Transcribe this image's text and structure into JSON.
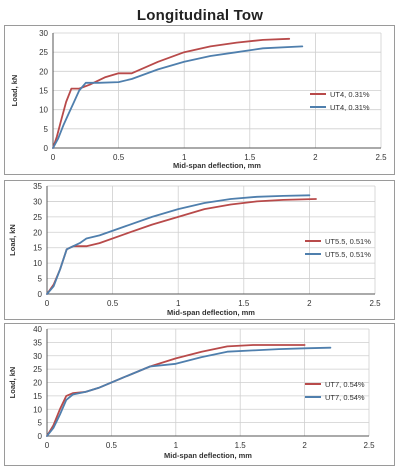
{
  "page": {
    "title": "Longitudinal Tow"
  },
  "chart_data": [
    {
      "type": "line",
      "title": "",
      "xlabel": "Mid-span deflection, mm",
      "ylabel": "Load, kN",
      "xlim": [
        0,
        2.5
      ],
      "ylim": [
        0,
        30
      ],
      "xticks": [
        "0",
        "0.5",
        "1",
        "1.5",
        "2",
        "2.5"
      ],
      "yticks": [
        "0",
        "5",
        "10",
        "15",
        "20",
        "25",
        "30"
      ],
      "grid": true,
      "legend_position": "right",
      "series": [
        {
          "name": "UT4, 0.31%",
          "color": "#b84a4a",
          "x": [
            0,
            0.03,
            0.06,
            0.1,
            0.14,
            0.2,
            0.28,
            0.4,
            0.5,
            0.6,
            0.8,
            1.0,
            1.2,
            1.4,
            1.6,
            1.8
          ],
          "y": [
            0,
            3,
            7,
            12,
            15.5,
            15.5,
            16.5,
            18.5,
            19.5,
            19.5,
            22.5,
            25,
            26.5,
            27.5,
            28.2,
            28.5
          ]
        },
        {
          "name": "UT4, 0.31%",
          "color": "#4f7fad",
          "x": [
            0,
            0.04,
            0.08,
            0.12,
            0.16,
            0.2,
            0.25,
            0.35,
            0.5,
            0.6,
            0.8,
            1.0,
            1.2,
            1.4,
            1.6,
            1.9
          ],
          "y": [
            0,
            2.5,
            6,
            9,
            12,
            15,
            17,
            17,
            17.2,
            18,
            20.5,
            22.5,
            24,
            25,
            26,
            26.5
          ]
        }
      ]
    },
    {
      "type": "line",
      "title": "",
      "xlabel": "Mid-span deflection, mm",
      "ylabel": "Load, kN",
      "xlim": [
        0,
        2.5
      ],
      "ylim": [
        0,
        35
      ],
      "xticks": [
        "0",
        "0.5",
        "1",
        "1.5",
        "2",
        "2.5"
      ],
      "yticks": [
        "0",
        "5",
        "10",
        "15",
        "20",
        "25",
        "30",
        "35"
      ],
      "grid": true,
      "legend_position": "right",
      "series": [
        {
          "name": "UT5.5, 0.51%",
          "color": "#b84a4a",
          "x": [
            0,
            0.05,
            0.1,
            0.15,
            0.2,
            0.3,
            0.4,
            0.6,
            0.8,
            1.0,
            1.2,
            1.4,
            1.6,
            1.8,
            2.05
          ],
          "y": [
            0,
            3,
            8,
            14.5,
            15.5,
            15.5,
            16.5,
            19.5,
            22.5,
            25,
            27.5,
            29,
            30,
            30.5,
            30.8
          ]
        },
        {
          "name": "UT5.5, 0.51%",
          "color": "#4f7fad",
          "x": [
            0,
            0.05,
            0.1,
            0.15,
            0.2,
            0.25,
            0.3,
            0.4,
            0.6,
            0.8,
            1.0,
            1.2,
            1.4,
            1.6,
            1.8,
            2.0
          ],
          "y": [
            0,
            2.5,
            8,
            14.5,
            15.5,
            16.5,
            18,
            19,
            22,
            25,
            27.5,
            29.5,
            30.8,
            31.5,
            31.8,
            32
          ]
        }
      ]
    },
    {
      "type": "line",
      "title": "",
      "xlabel": "Mid-span deflection, mm",
      "ylabel": "Load, kN",
      "xlim": [
        0,
        2.5
      ],
      "ylim": [
        0,
        40
      ],
      "xticks": [
        "0",
        "0.5",
        "1",
        "1.5",
        "2",
        "2.5"
      ],
      "yticks": [
        "0",
        "5",
        "10",
        "15",
        "20",
        "25",
        "30",
        "35",
        "40"
      ],
      "grid": true,
      "legend_position": "right",
      "series": [
        {
          "name": "UT7, 0.54%",
          "color": "#b84a4a",
          "x": [
            0,
            0.05,
            0.1,
            0.15,
            0.2,
            0.3,
            0.4,
            0.6,
            0.8,
            1.0,
            1.2,
            1.4,
            1.6,
            1.8,
            2.0
          ],
          "y": [
            0,
            4,
            10,
            15,
            16,
            16.5,
            18,
            22,
            26,
            29,
            31.5,
            33.5,
            34,
            34,
            34
          ]
        },
        {
          "name": "UT7, 0.54%",
          "color": "#4f7fad",
          "x": [
            0,
            0.05,
            0.1,
            0.15,
            0.2,
            0.3,
            0.4,
            0.6,
            0.8,
            1.0,
            1.2,
            1.4,
            1.6,
            1.8,
            2.0,
            2.2
          ],
          "y": [
            0,
            3,
            8,
            13.5,
            15.5,
            16.5,
            18,
            22,
            26,
            27,
            29.5,
            31.5,
            32,
            32.5,
            32.8,
            33
          ]
        }
      ]
    }
  ]
}
